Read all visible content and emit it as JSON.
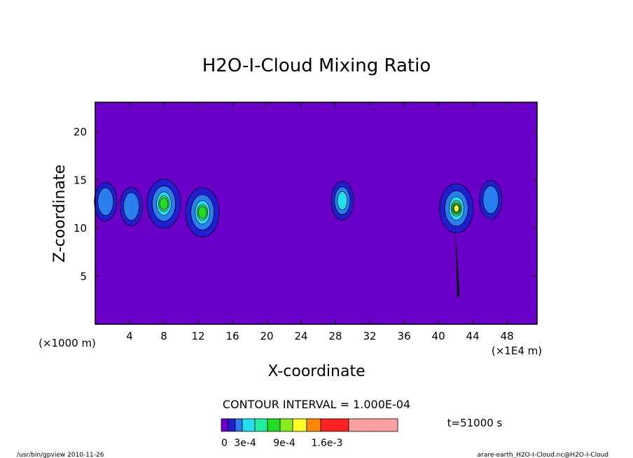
{
  "chart_data": {
    "type": "contour",
    "title": "H2O-I-Cloud Mixing Ratio",
    "xlabel": "X-coordinate",
    "ylabel": "Z-coordinate",
    "x_unit_left": "(×1000 m)",
    "x_unit_right": "(×1E4 m)",
    "xlim": [
      0,
      51.5
    ],
    "ylim": [
      0,
      23
    ],
    "x_ticks": [
      4,
      8,
      12,
      16,
      20,
      24,
      28,
      32,
      36,
      40,
      44,
      48
    ],
    "y_ticks": [
      5,
      10,
      15,
      20
    ],
    "background_color": "#6a00c8",
    "levels": [
      0,
      0.0001,
      0.0002,
      0.0003,
      0.0004,
      0.0005,
      0.0006,
      0.0007,
      0.0008,
      0.0009,
      0.001,
      0.0011,
      0.0012,
      0.0013,
      0.0014,
      0.0016,
      0.0019
    ],
    "contour_interval_label": "CONTOUR INTERVAL = 1.000E-04",
    "time_label": "t=51000 s",
    "colorbar": {
      "colors": [
        "#6a00c8",
        "#1f1fd1",
        "#2a7ff0",
        "#22e0ef",
        "#22eea0",
        "#22dd22",
        "#88ee22",
        "#ffff22",
        "#ff8800",
        "#ff2222",
        "#ffa0a0"
      ],
      "labels": [
        "0",
        "3e-4",
        "9e-4",
        "1.6e-3"
      ]
    },
    "features": [
      {
        "x": 1.2,
        "z": 12.7,
        "peak_level": 2
      },
      {
        "x": 4.2,
        "z": 12.2,
        "peak_level": 2
      },
      {
        "x": 8.0,
        "z": 12.5,
        "peak_level": 5
      },
      {
        "x": 12.5,
        "z": 11.6,
        "peak_level": 5
      },
      {
        "x": 28.8,
        "z": 12.8,
        "peak_level": 3
      },
      {
        "x": 42.1,
        "z": 12.0,
        "peak_level": 7
      },
      {
        "x": 46.1,
        "z": 12.9,
        "peak_level": 2
      }
    ]
  },
  "footer": {
    "left": "/usr/bin/gpview  2010-11-26",
    "right": "arare-earth_H2O-I-Cloud.nc@H2O-I-Cloud"
  }
}
